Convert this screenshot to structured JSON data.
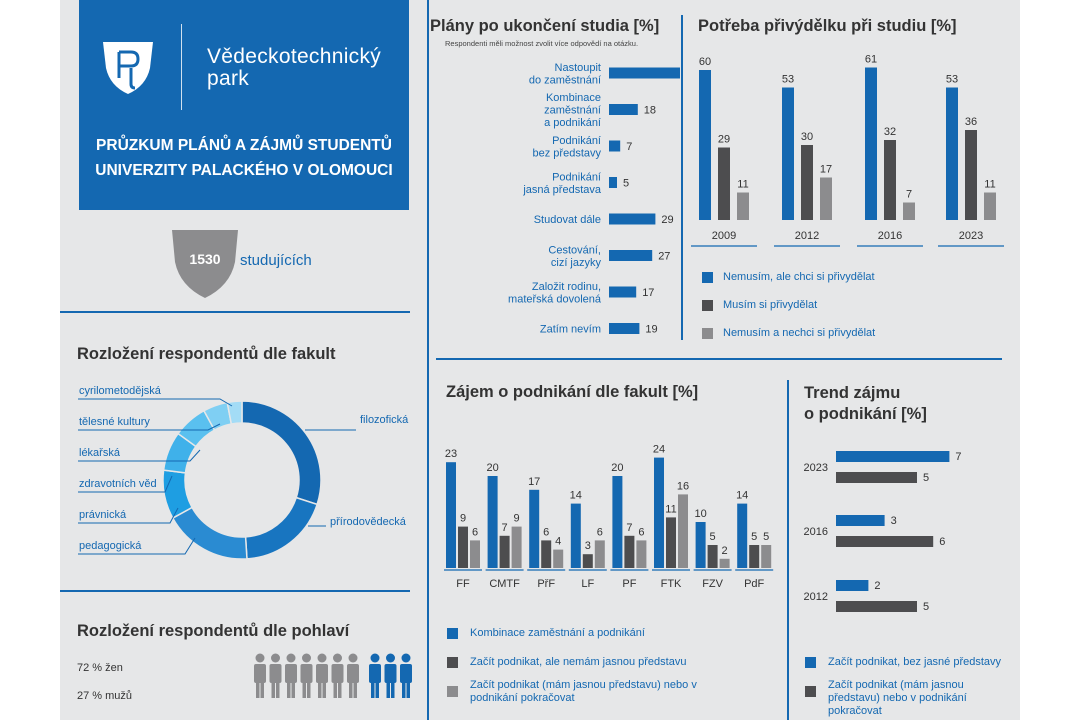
{
  "header": {
    "brand_line1": "Vědeckotechnický",
    "brand_line2": "park",
    "title_line1": "PRŮZKUM PLÁNŮ A ZÁJMŮ STUDENTŮ",
    "title_line2": "UNIVERZITY PALACKÉHO V OLOMOUCI"
  },
  "respondents": {
    "count": "1530",
    "label": "studujících"
  },
  "colors": {
    "blue": "#1468b1",
    "dark": "#4d4d4f",
    "gray": "#8c8c8e",
    "background": "#e6e7e8"
  },
  "faculties": {
    "title": "Rozložení respondentů dle fakult",
    "labels_left": [
      "cyrilometodějská",
      "tělesné kultury",
      "lékařská",
      "zdravotních věd",
      "právnická",
      "pedagogická"
    ],
    "labels_right": [
      "filozofická",
      "přírodovědecká"
    ]
  },
  "gender": {
    "title": "Rozložení respondentů dle pohlaví",
    "women": "72 % žen",
    "men": "27 % mužů",
    "women_share": 0.72,
    "men_share": 0.27
  },
  "chart_data": [
    {
      "type": "bar",
      "orientation": "horizontal",
      "title": "Plány po ukončení studia [%]",
      "note": "Respondenti měli možnost zvolit více odpovědí na otázku.",
      "categories": [
        [
          "Nastoupit",
          "do zaměstnání"
        ],
        [
          "Kombinace",
          "zaměstnání",
          "a podnikání"
        ],
        [
          "Podnikání",
          "bez představy"
        ],
        [
          "Podnikání",
          "jasná představa"
        ],
        [
          "Studovat dále"
        ],
        [
          "Cestování,",
          "cizí jazyky"
        ],
        [
          "Založit rodinu,",
          "mateřská dovolená"
        ],
        [
          "Zatím nevím"
        ]
      ],
      "values": [
        60,
        18,
        7,
        5,
        29,
        27,
        17,
        19
      ]
    },
    {
      "type": "bar",
      "title": "Potřeba přivýdělku při studiu [%]",
      "categories": [
        "2009",
        "2012",
        "2016",
        "2023"
      ],
      "series": [
        {
          "name": "Nemusím, ale chci si přivydělat",
          "values": [
            60,
            53,
            61,
            53
          ]
        },
        {
          "name": "Musím si přivydělat",
          "values": [
            29,
            30,
            32,
            36
          ]
        },
        {
          "name": "Nemusím a nechci si přivydělat",
          "values": [
            11,
            17,
            7,
            11
          ]
        }
      ],
      "legend": "bottom"
    },
    {
      "type": "bar",
      "title": "Zájem o podnikání dle fakult [%]",
      "categories": [
        "FF",
        "CMTF",
        "PřF",
        "LF",
        "PF",
        "FTK",
        "FZV",
        "PdF"
      ],
      "series": [
        {
          "name": "Kombinace zaměstnání a podnikání",
          "values": [
            23,
            20,
            17,
            14,
            20,
            24,
            10,
            14
          ]
        },
        {
          "name": "Začít podnikat, ale nemám jasnou představu",
          "values": [
            9,
            7,
            6,
            3,
            7,
            11,
            5,
            5
          ]
        },
        {
          "name": "Začít podnikat (mám jasnou představu) nebo v podnikání pokračovat",
          "values": [
            6,
            9,
            4,
            6,
            6,
            16,
            2,
            5
          ]
        }
      ],
      "legend": "bottom"
    },
    {
      "type": "bar",
      "orientation": "horizontal",
      "title": "Trend zájmu o podnikání [%]",
      "title_lines": [
        "Trend zájmu",
        "o podnikání [%]"
      ],
      "categories": [
        "2023",
        "2016",
        "2012"
      ],
      "series": [
        {
          "name": "Začít podnikat, bez jasné představy",
          "values": [
            7,
            3,
            2
          ]
        },
        {
          "name": "Začít podnikat (mám jasnou představu) nebo v podnikání pokračovat",
          "values": [
            5,
            6,
            5
          ]
        }
      ],
      "legend": "bottom"
    },
    {
      "type": "pie",
      "title": "Rozložení respondentů dle fakult",
      "categories": [
        "filozofická",
        "přírodovědecká",
        "pedagogická",
        "právnická",
        "zdravotních věd",
        "lékařská",
        "tělesné kultury",
        "cyrilometodějská"
      ],
      "values": [
        30,
        19,
        18,
        10,
        8,
        7,
        5,
        3
      ]
    }
  ]
}
